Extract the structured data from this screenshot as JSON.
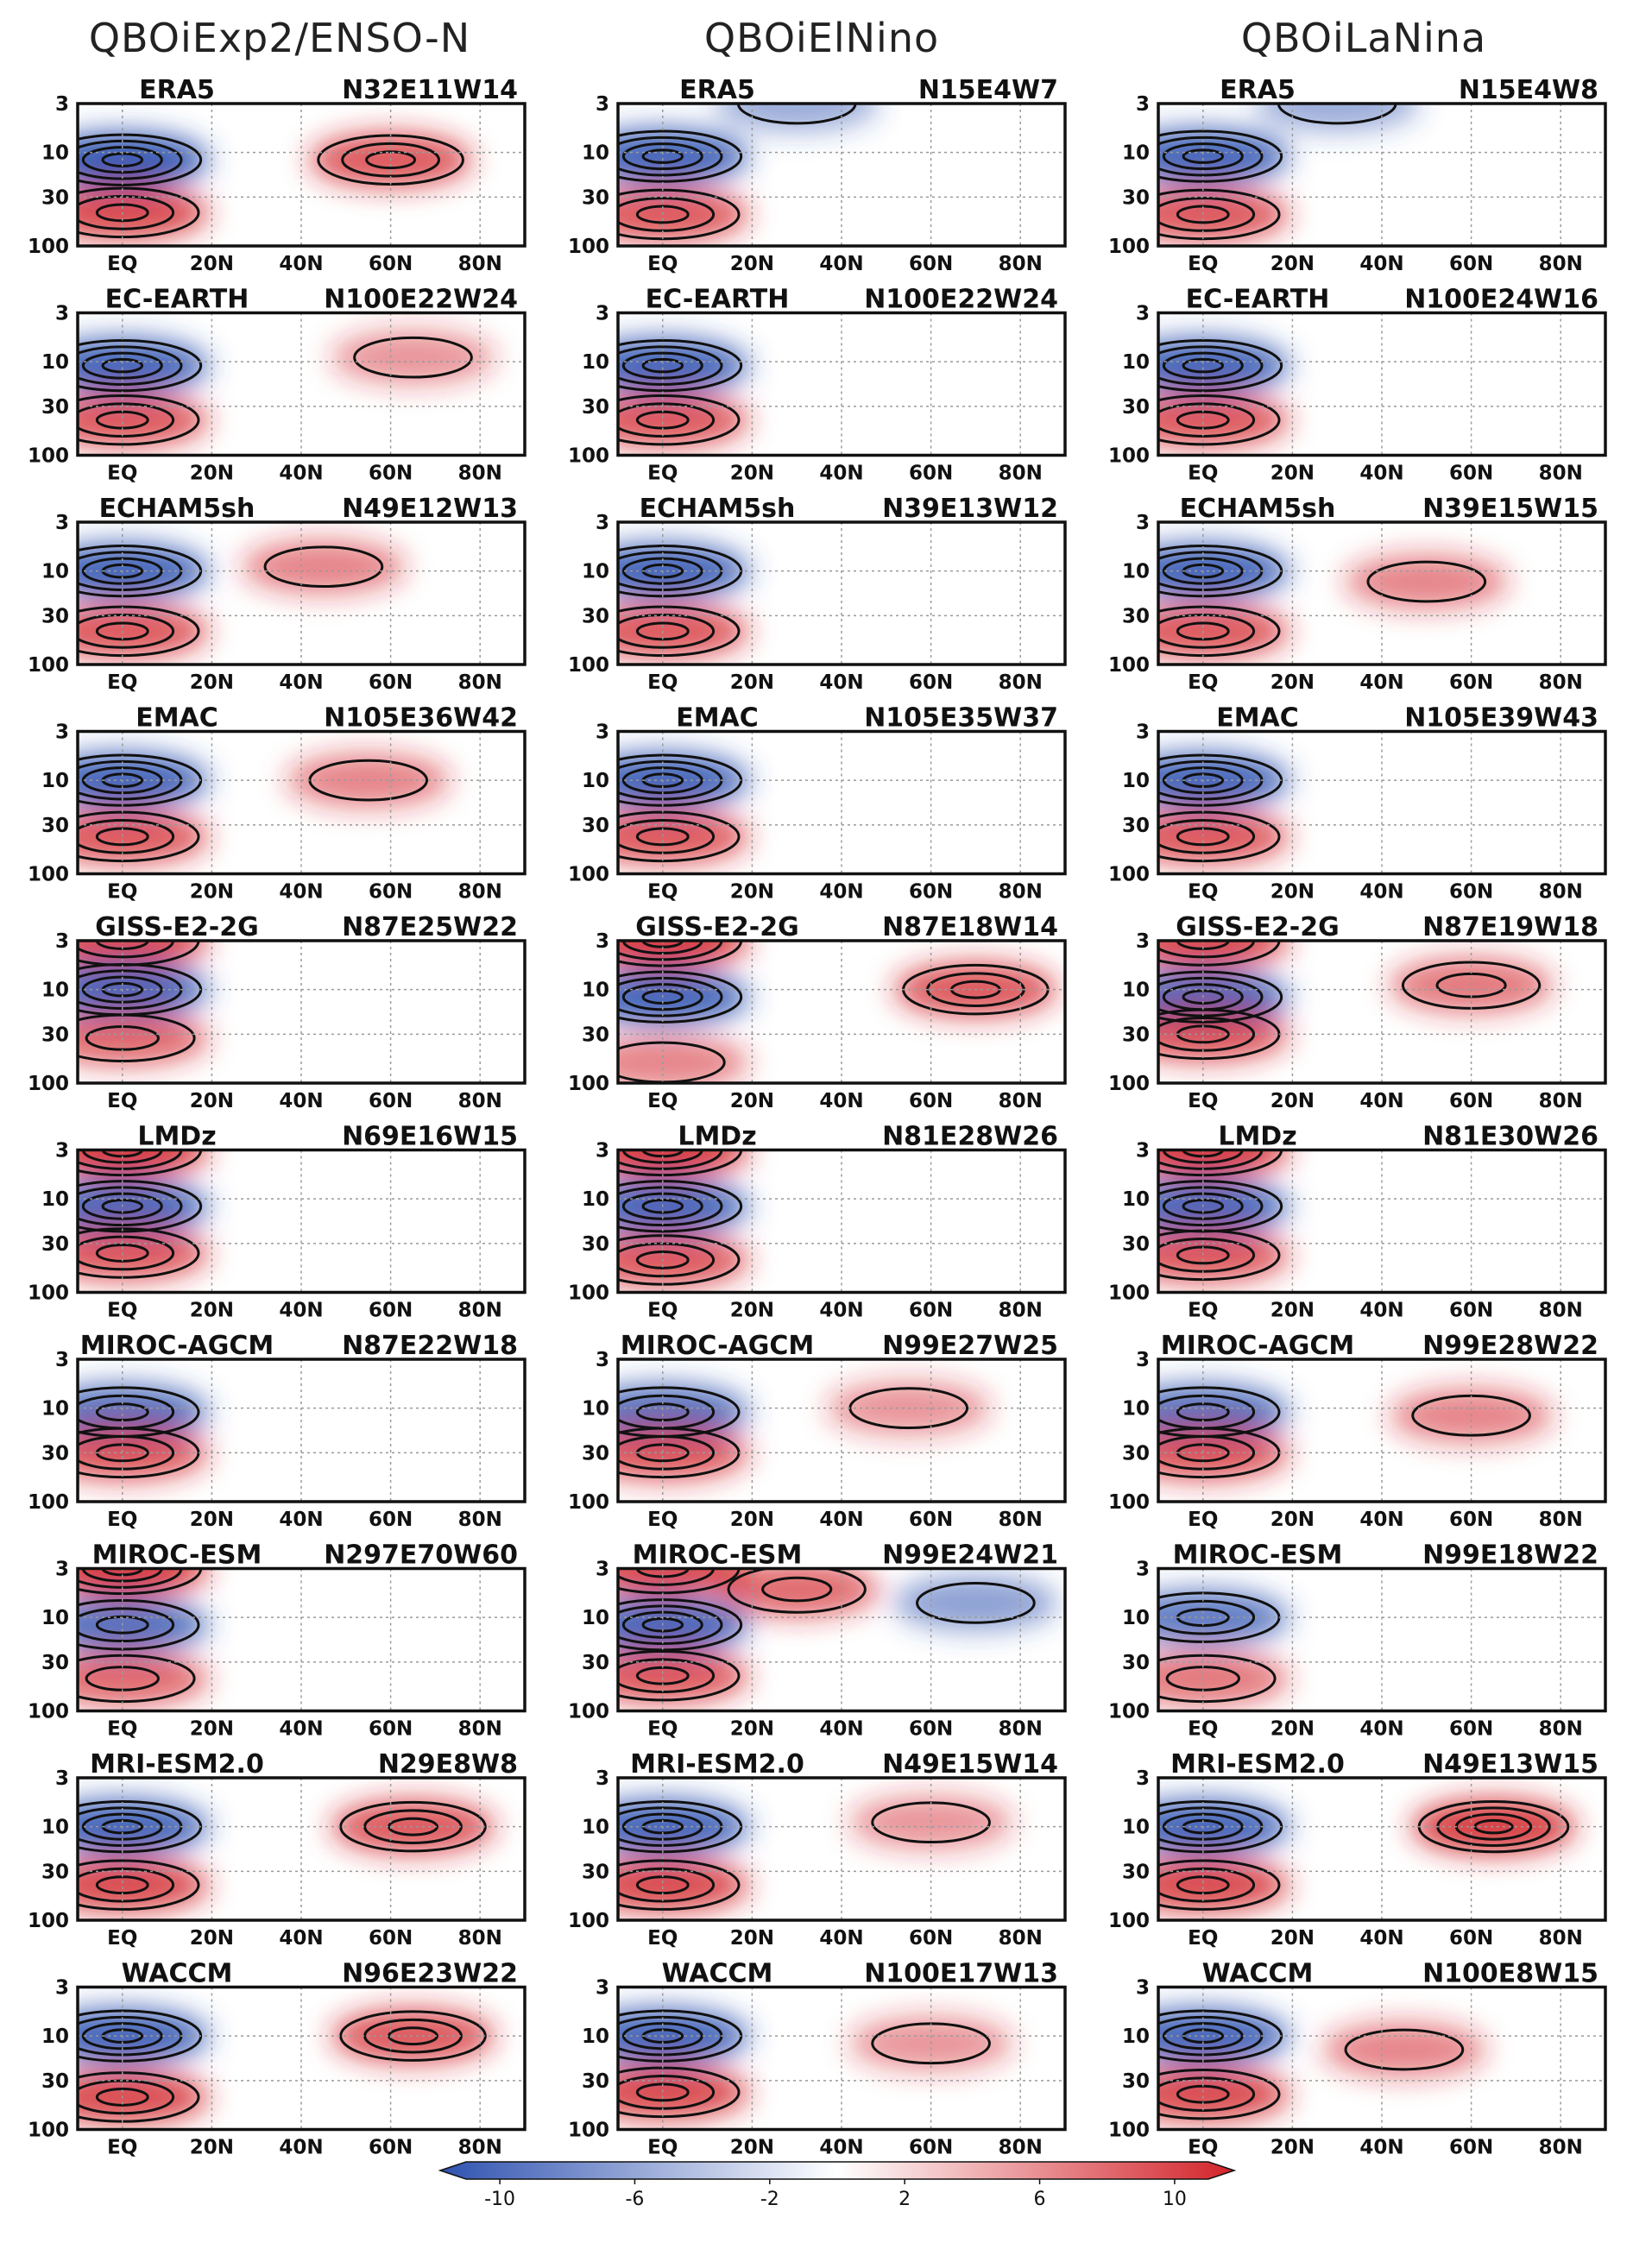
{
  "colors": {
    "negative": "#2f52b0",
    "positive": "#d2232a",
    "neutral": "#ffffff",
    "contour": "#111111",
    "grid": "#9a9a9a"
  },
  "column_titles": [
    "QBOiExp2/ENSO-N",
    "QBOiElNino",
    "QBOiLaNina"
  ],
  "axes": {
    "x_ticks": [
      "EQ",
      "20N",
      "40N",
      "60N",
      "80N"
    ],
    "x_values": [
      0,
      20,
      40,
      60,
      80
    ],
    "xlim": [
      -10,
      90
    ],
    "y_ticks": [
      "3",
      "10",
      "30",
      "100"
    ],
    "y_values": [
      3,
      10,
      30,
      100
    ],
    "ylim": [
      3,
      100
    ],
    "y_scale": "log",
    "y_inverted": true
  },
  "colorbar": {
    "ticks": [
      "-10",
      "-6",
      "-2",
      "2",
      "6",
      "10"
    ],
    "values": [
      -10,
      -6,
      -2,
      2,
      6,
      10
    ],
    "range": [
      -11,
      11
    ],
    "orientation": "horizontal",
    "extend": "both"
  },
  "chart_data": {
    "type": "heatmap",
    "panels": [
      {
        "model": "ERA5",
        "counts": [
          "N32E11W14",
          "N15E4W7",
          "N15E4W8"
        ]
      },
      {
        "model": "EC-EARTH",
        "counts": [
          "N100E22W24",
          "N100E22W24",
          "N100E24W16"
        ]
      },
      {
        "model": "ECHAM5sh",
        "counts": [
          "N49E12W13",
          "N39E13W12",
          "N39E15W15"
        ]
      },
      {
        "model": "EMAC",
        "counts": [
          "N105E36W42",
          "N105E35W37",
          "N105E39W43"
        ]
      },
      {
        "model": "GISS-E2-2G",
        "counts": [
          "N87E25W22",
          "N87E18W14",
          "N87E19W18"
        ]
      },
      {
        "model": "LMDz",
        "counts": [
          "N69E16W15",
          "N81E28W26",
          "N81E30W26"
        ]
      },
      {
        "model": "MIROC-AGCM",
        "counts": [
          "N87E22W18",
          "N99E27W25",
          "N99E28W22"
        ]
      },
      {
        "model": "MIROC-ESM",
        "counts": [
          "N297E70W60",
          "N99E24W21",
          "N99E18W22"
        ]
      },
      {
        "model": "MRI-ESM2.0",
        "counts": [
          "N29E8W8",
          "N49E15W14",
          "N49E13W15"
        ]
      },
      {
        "model": "WACCM",
        "counts": [
          "N96E23W22",
          "N100E17W13",
          "N100E8W15"
        ]
      }
    ],
    "features": [
      [
        [
          [
            0,
            12,
            -9
          ],
          [
            0,
            44,
            7
          ],
          [
            60,
            12,
            6
          ]
        ],
        [
          [
            0,
            11,
            -8
          ],
          [
            0,
            46,
            6
          ],
          [
            30,
            3,
            -2
          ]
        ],
        [
          [
            0,
            11,
            -8
          ],
          [
            0,
            46,
            6
          ],
          [
            30,
            3,
            -2
          ]
        ]
      ],
      [
        [
          [
            0,
            11,
            -8
          ],
          [
            0,
            42,
            6
          ],
          [
            65,
            9,
            2
          ]
        ],
        [
          [
            0,
            11,
            -8
          ],
          [
            0,
            42,
            6
          ]
        ],
        [
          [
            0,
            11,
            -8
          ],
          [
            0,
            42,
            6
          ]
        ]
      ],
      [
        [
          [
            0,
            10,
            -8
          ],
          [
            0,
            44,
            6
          ],
          [
            45,
            9,
            3
          ]
        ],
        [
          [
            0,
            10,
            -8
          ],
          [
            0,
            44,
            6
          ]
        ],
        [
          [
            0,
            10,
            -8
          ],
          [
            0,
            44,
            6
          ],
          [
            50,
            13,
            3
          ]
        ]
      ],
      [
        [
          [
            0,
            10,
            -8
          ],
          [
            0,
            40,
            6
          ],
          [
            55,
            10,
            3
          ]
        ],
        [
          [
            0,
            10,
            -8
          ],
          [
            0,
            40,
            6
          ]
        ],
        [
          [
            0,
            10,
            -8
          ],
          [
            0,
            40,
            6
          ]
        ]
      ],
      [
        [
          [
            0,
            3,
            7
          ],
          [
            0,
            10,
            -8
          ],
          [
            0,
            33,
            5
          ]
        ],
        [
          [
            0,
            3,
            8
          ],
          [
            0,
            12,
            -8
          ],
          [
            0,
            60,
            3
          ],
          [
            70,
            10,
            6
          ]
        ],
        [
          [
            0,
            3,
            7
          ],
          [
            0,
            12,
            -8
          ],
          [
            0,
            30,
            6
          ],
          [
            60,
            9,
            4
          ]
        ]
      ],
      [
        [
          [
            0,
            3,
            8
          ],
          [
            0,
            12,
            -8
          ],
          [
            0,
            38,
            6
          ]
        ],
        [
          [
            0,
            3,
            8
          ],
          [
            0,
            12,
            -8
          ],
          [
            0,
            45,
            6
          ]
        ],
        [
          [
            0,
            3,
            8
          ],
          [
            0,
            12,
            -8
          ],
          [
            0,
            40,
            6
          ]
        ]
      ],
      [
        [
          [
            0,
            11,
            -7
          ],
          [
            0,
            30,
            6
          ]
        ],
        [
          [
            0,
            11,
            -7
          ],
          [
            0,
            30,
            6
          ],
          [
            55,
            10,
            2
          ]
        ],
        [
          [
            0,
            11,
            -7
          ],
          [
            0,
            30,
            6
          ],
          [
            60,
            12,
            3
          ]
        ]
      ],
      [
        [
          [
            0,
            3,
            8
          ],
          [
            0,
            12,
            -7
          ],
          [
            0,
            45,
            5
          ]
        ],
        [
          [
            0,
            3,
            7
          ],
          [
            0,
            12,
            -8
          ],
          [
            0,
            42,
            6
          ],
          [
            30,
            5,
            5
          ],
          [
            70,
            7,
            -3
          ]
        ],
        [
          [
            0,
            10,
            -6
          ],
          [
            0,
            45,
            4
          ]
        ]
      ],
      [
        [
          [
            0,
            10,
            -8
          ],
          [
            0,
            42,
            7
          ],
          [
            65,
            10,
            6
          ]
        ],
        [
          [
            0,
            10,
            -8
          ],
          [
            0,
            42,
            7
          ],
          [
            60,
            9,
            2
          ]
        ],
        [
          [
            0,
            10,
            -8
          ],
          [
            0,
            42,
            7
          ],
          [
            65,
            10,
            8
          ]
        ]
      ],
      [
        [
          [
            0,
            10,
            -8
          ],
          [
            0,
            45,
            7
          ],
          [
            65,
            10,
            6
          ]
        ],
        [
          [
            0,
            10,
            -8
          ],
          [
            0,
            40,
            7
          ],
          [
            60,
            12,
            2
          ]
        ],
        [
          [
            0,
            10,
            -8
          ],
          [
            0,
            42,
            7
          ],
          [
            45,
            14,
            3
          ]
        ]
      ]
    ]
  }
}
